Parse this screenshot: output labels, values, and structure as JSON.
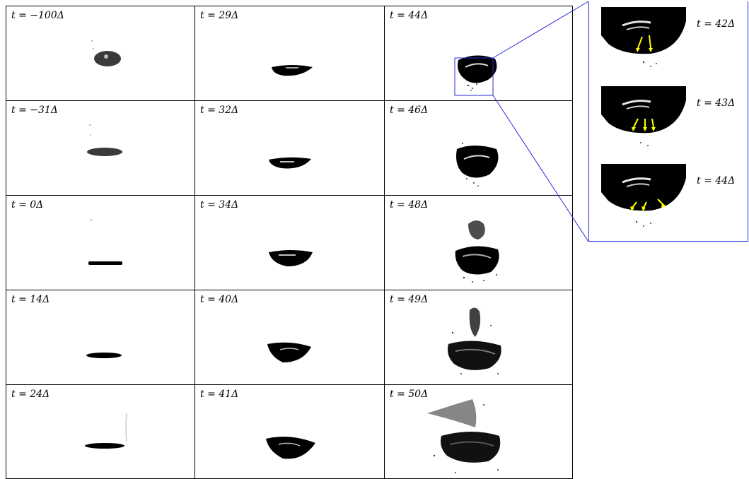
{
  "panels": [
    [
      "t = −100Δ",
      "t = 29Δ",
      "t = 44Δ"
    ],
    [
      "t = −31Δ",
      "t = 32Δ",
      "t = 46Δ"
    ],
    [
      "t = 0Δ",
      "t = 34Δ",
      "t = 48Δ"
    ],
    [
      "t = 14Δ",
      "t = 40Δ",
      "t = 49Δ"
    ],
    [
      "t = 24Δ",
      "t = 41Δ",
      "t = 50Δ"
    ]
  ],
  "zoom": {
    "labels": [
      "t = 42Δ",
      "t = 43Δ",
      "t = 44Δ"
    ],
    "arrow_color": "#ffff00",
    "frame_color": "#2a2ae0"
  },
  "colors": {
    "drop": "#000000",
    "border": "#000000"
  }
}
